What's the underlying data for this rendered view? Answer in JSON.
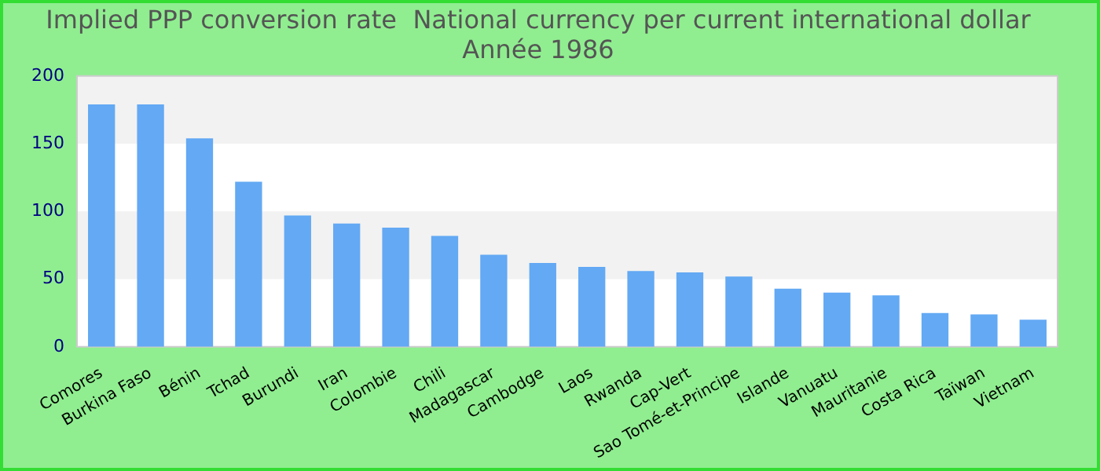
{
  "chart_data": {
    "type": "bar",
    "title": "Implied PPP conversion rate  National currency per current international dollar",
    "subtitle": "Année 1986",
    "categories": [
      "Comores",
      "Burkina Faso",
      "Bénin",
      "Tchad",
      "Burundi",
      "Iran",
      "Colombie",
      "Chili",
      "Madagascar",
      "Cambodge",
      "Laos",
      "Rwanda",
      "Cap-Vert",
      "Sao Tomé-et-Principe",
      "Islande",
      "Vanuatu",
      "Mauritanie",
      "Costa Rica",
      "Taïwan",
      "Vietnam"
    ],
    "values": [
      179,
      179,
      154,
      122,
      97,
      91,
      88,
      82,
      68,
      62,
      59,
      56,
      55,
      52,
      43,
      40,
      38,
      25,
      24,
      20
    ],
    "color": "#63a9f4",
    "ylim": [
      0,
      200
    ],
    "yticks": [
      0,
      50,
      100,
      150,
      200
    ],
    "legend": false
  }
}
